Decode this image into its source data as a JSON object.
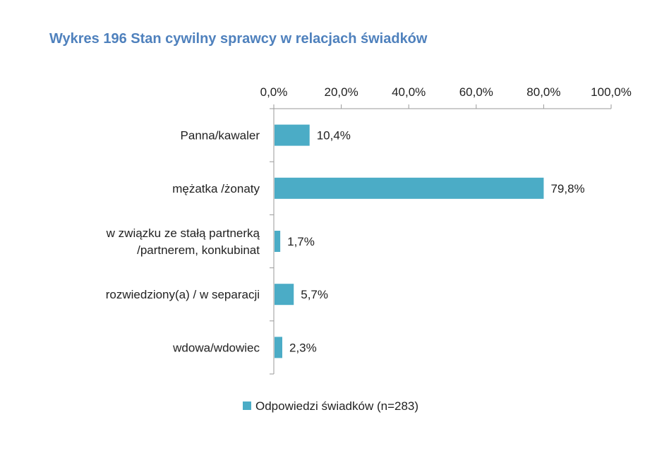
{
  "chart_data": {
    "type": "bar",
    "orientation": "horizontal",
    "title": "Wykres 196 Stan cywilny sprawcy w relacjach świadków",
    "categories": [
      [
        "Panna/kawaler"
      ],
      [
        "mężatka /żonaty"
      ],
      [
        "w związku ze stałą partnerką",
        "/partnerem, konkubinat"
      ],
      [
        "rozwiedziony(a) / w separacji"
      ],
      [
        "wdowa/wdowiec"
      ]
    ],
    "series": [
      {
        "name": "Odpowiedzi świadków (n=283)",
        "values": [
          10.4,
          79.8,
          1.7,
          5.7,
          2.3
        ],
        "labels": [
          "10,4%",
          "79,8%",
          "1,7%",
          "5,7%",
          "2,3%"
        ]
      }
    ],
    "xlim": [
      0,
      100
    ],
    "xticks": [
      0,
      20,
      40,
      60,
      80,
      100
    ],
    "xtick_labels": [
      "0,0%",
      "20,0%",
      "40,0%",
      "60,0%",
      "80,0%",
      "100,0%"
    ],
    "axis_position": "top",
    "grid": false,
    "legend_position": "bottom",
    "colors": {
      "bar": "#4BACC6",
      "axis": "#9A9A9A",
      "title": "#4F81BD",
      "text": "#222222"
    }
  }
}
